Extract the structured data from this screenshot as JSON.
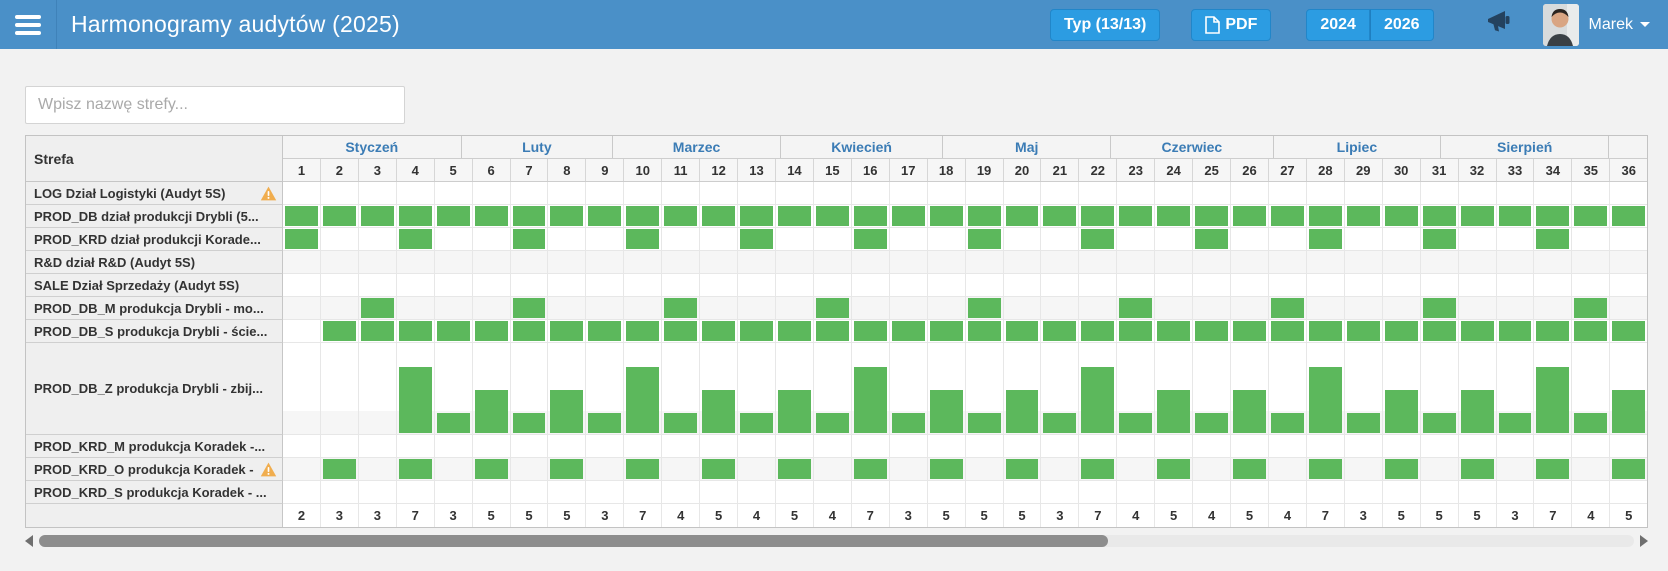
{
  "header": {
    "title": "Harmonogramy audytów (2025)",
    "type_button": "Typ (13/13)",
    "pdf_button": "PDF",
    "year_prev_button": "2024",
    "year_next_button": "2026",
    "user_name": "Marek"
  },
  "search": {
    "placeholder": "Wpisz nazwę strefy..."
  },
  "colors": {
    "topbar_blue": "#4a90c8",
    "button_blue": "#2c9ce2",
    "audit_green": "#5cb85c",
    "warning_yellow": "#f0ad4e",
    "month_text_blue": "#3b7cb5"
  },
  "table": {
    "zone_header": "Strefa",
    "months": [
      {
        "label": "Styczeń",
        "span_weeks": 4.714
      },
      {
        "label": "Luty",
        "span_weeks": 4.0
      },
      {
        "label": "Marzec",
        "span_weeks": 4.429
      },
      {
        "label": "Kwiecień",
        "span_weeks": 4.286
      },
      {
        "label": "Maj",
        "span_weeks": 4.429
      },
      {
        "label": "Czerwiec",
        "span_weeks": 4.286
      },
      {
        "label": "Lipiec",
        "span_weeks": 4.428
      },
      {
        "label": "Sierpień",
        "span_weeks": 4.429
      },
      {
        "label": "",
        "span_weeks": 1.0
      }
    ],
    "week_numbers": [
      1,
      2,
      3,
      4,
      5,
      6,
      7,
      8,
      9,
      10,
      11,
      12,
      13,
      14,
      15,
      16,
      17,
      18,
      19,
      20,
      21,
      22,
      23,
      24,
      25,
      26,
      27,
      28,
      29,
      30,
      31,
      32,
      33,
      34,
      35,
      36
    ],
    "rows": [
      {
        "label": "LOG Dział Logistyki (Audyt 5S)",
        "warning": true,
        "striped": false,
        "tall": false,
        "cells": [
          0,
          0,
          0,
          0,
          0,
          0,
          0,
          0,
          0,
          0,
          0,
          0,
          0,
          0,
          0,
          0,
          0,
          0,
          0,
          0,
          0,
          0,
          0,
          0,
          0,
          0,
          0,
          0,
          0,
          0,
          0,
          0,
          0,
          0,
          0,
          0
        ]
      },
      {
        "label": "PROD_DB dział produkcji Drybli (5...",
        "warning": false,
        "striped": false,
        "tall": false,
        "cells": [
          1,
          1,
          1,
          1,
          1,
          1,
          1,
          1,
          1,
          1,
          1,
          1,
          1,
          1,
          1,
          1,
          1,
          1,
          1,
          1,
          1,
          1,
          1,
          1,
          1,
          1,
          1,
          1,
          1,
          1,
          1,
          1,
          1,
          1,
          1,
          1
        ]
      },
      {
        "label": "PROD_KRD dział produkcji Korade...",
        "warning": false,
        "striped": false,
        "tall": false,
        "cells": [
          1,
          0,
          0,
          1,
          0,
          0,
          1,
          0,
          0,
          1,
          0,
          0,
          1,
          0,
          0,
          1,
          0,
          0,
          1,
          0,
          0,
          1,
          0,
          0,
          1,
          0,
          0,
          1,
          0,
          0,
          1,
          0,
          0,
          1,
          0,
          0
        ]
      },
      {
        "label": "R&D dział R&D (Audyt 5S)",
        "warning": false,
        "striped": true,
        "tall": false,
        "cells": [
          0,
          0,
          0,
          0,
          0,
          0,
          0,
          0,
          0,
          0,
          0,
          0,
          0,
          0,
          0,
          0,
          0,
          0,
          0,
          0,
          0,
          0,
          0,
          0,
          0,
          0,
          0,
          0,
          0,
          0,
          0,
          0,
          0,
          0,
          0,
          0
        ]
      },
      {
        "label": "SALE Dział Sprzedaży (Audyt 5S)",
        "warning": false,
        "striped": false,
        "tall": false,
        "cells": [
          0,
          0,
          0,
          0,
          0,
          0,
          0,
          0,
          0,
          0,
          0,
          0,
          0,
          0,
          0,
          0,
          0,
          0,
          0,
          0,
          0,
          0,
          0,
          0,
          0,
          0,
          0,
          0,
          0,
          0,
          0,
          0,
          0,
          0,
          0,
          0
        ]
      },
      {
        "label": "PROD_DB_M produkcja Drybli - mo...",
        "warning": false,
        "striped": true,
        "tall": false,
        "cells": [
          0,
          0,
          1,
          0,
          0,
          0,
          1,
          0,
          0,
          0,
          1,
          0,
          0,
          0,
          1,
          0,
          0,
          0,
          1,
          0,
          0,
          0,
          1,
          0,
          0,
          0,
          1,
          0,
          0,
          0,
          1,
          0,
          0,
          0,
          1,
          0
        ]
      },
      {
        "label": "PROD_DB_S produkcja Drybli - ście...",
        "warning": false,
        "striped": false,
        "tall": false,
        "cells": [
          0,
          1,
          1,
          1,
          1,
          1,
          1,
          1,
          1,
          1,
          1,
          1,
          1,
          1,
          1,
          1,
          1,
          1,
          1,
          1,
          1,
          1,
          1,
          1,
          1,
          1,
          1,
          1,
          1,
          1,
          1,
          1,
          1,
          1,
          1,
          1
        ]
      },
      {
        "label": "PROD_DB_Z produkcja Drybli - zbij...",
        "warning": false,
        "striped": false,
        "tall": true,
        "cells": [
          0,
          0,
          0,
          3,
          1,
          2,
          1,
          2,
          1,
          3,
          1,
          2,
          1,
          2,
          1,
          3,
          1,
          2,
          1,
          2,
          1,
          3,
          1,
          2,
          1,
          2,
          1,
          3,
          1,
          2,
          1,
          2,
          1,
          3,
          1,
          2
        ]
      },
      {
        "label": "PROD_KRD_M produkcja Koradek -...",
        "warning": false,
        "striped": false,
        "tall": false,
        "cells": [
          0,
          0,
          0,
          0,
          0,
          0,
          0,
          0,
          0,
          0,
          0,
          0,
          0,
          0,
          0,
          0,
          0,
          0,
          0,
          0,
          0,
          0,
          0,
          0,
          0,
          0,
          0,
          0,
          0,
          0,
          0,
          0,
          0,
          0,
          0,
          0
        ]
      },
      {
        "label": "PROD_KRD_O produkcja Koradek -",
        "warning": true,
        "striped": true,
        "tall": false,
        "cells": [
          0,
          1,
          0,
          1,
          0,
          1,
          0,
          1,
          0,
          1,
          0,
          1,
          0,
          1,
          0,
          1,
          0,
          1,
          0,
          1,
          0,
          1,
          0,
          1,
          0,
          1,
          0,
          1,
          0,
          1,
          0,
          1,
          0,
          1,
          0,
          1
        ]
      },
      {
        "label": "PROD_KRD_S produkcja Koradek - ...",
        "warning": false,
        "striped": false,
        "tall": false,
        "cells": [
          0,
          0,
          0,
          0,
          0,
          0,
          0,
          0,
          0,
          0,
          0,
          0,
          0,
          0,
          0,
          0,
          0,
          0,
          0,
          0,
          0,
          0,
          0,
          0,
          0,
          0,
          0,
          0,
          0,
          0,
          0,
          0,
          0,
          0,
          0,
          0
        ]
      }
    ],
    "week_totals": [
      2,
      3,
      3,
      7,
      3,
      5,
      5,
      5,
      3,
      7,
      4,
      5,
      4,
      5,
      4,
      7,
      3,
      5,
      5,
      5,
      3,
      7,
      4,
      5,
      4,
      5,
      4,
      7,
      3,
      5,
      5,
      5,
      3,
      7,
      4,
      5
    ]
  }
}
